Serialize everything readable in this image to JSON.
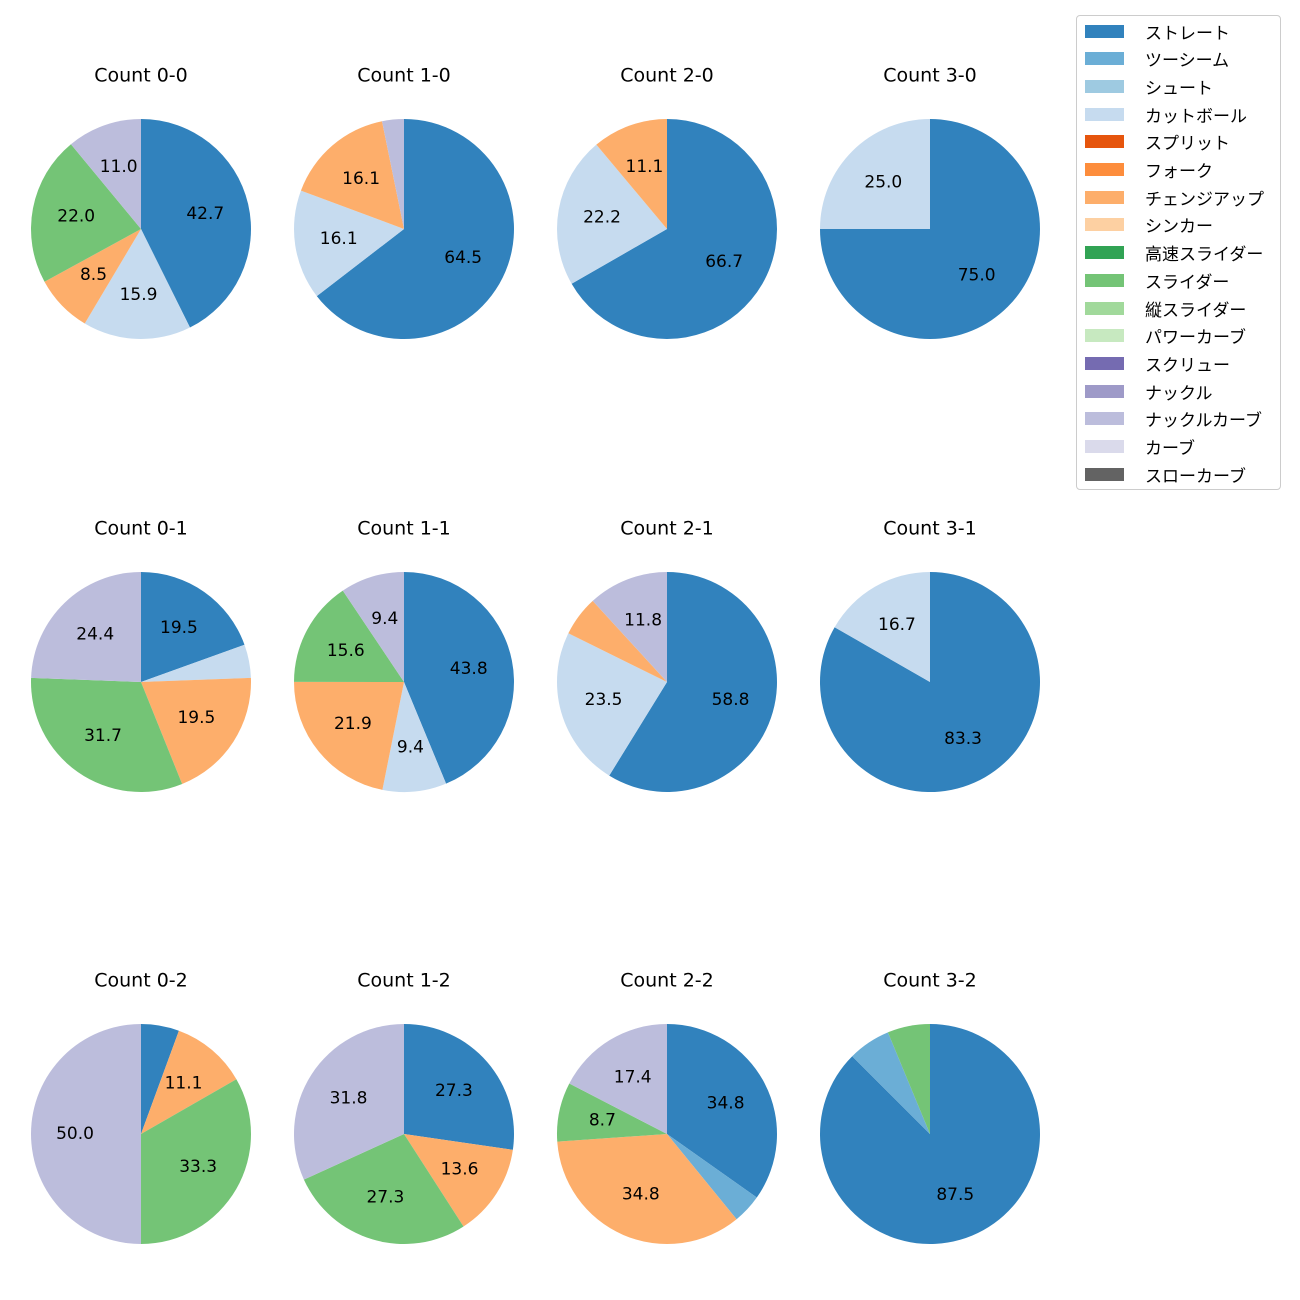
{
  "chart_data": {
    "type": "pie",
    "legend_position": "top-right",
    "legend": [
      {
        "name": "ストレート",
        "color": "#3182bd"
      },
      {
        "name": "ツーシーム",
        "color": "#6baed6"
      },
      {
        "name": "シュート",
        "color": "#9ecae1"
      },
      {
        "name": "カットボール",
        "color": "#c6dbef"
      },
      {
        "name": "スプリット",
        "color": "#e6550d"
      },
      {
        "name": "フォーク",
        "color": "#fd8d3c"
      },
      {
        "name": "チェンジアップ",
        "color": "#fdae6b"
      },
      {
        "name": "シンカー",
        "color": "#fdd0a2"
      },
      {
        "name": "高速スライダー",
        "color": "#31a354"
      },
      {
        "name": "スライダー",
        "color": "#74c476"
      },
      {
        "name": "縦スライダー",
        "color": "#a1d99b"
      },
      {
        "name": "パワーカーブ",
        "color": "#c7e9c0"
      },
      {
        "name": "スクリュー",
        "color": "#756bb1"
      },
      {
        "name": "ナックル",
        "color": "#9e9ac8"
      },
      {
        "name": "ナックルカーブ",
        "color": "#bcbddc"
      },
      {
        "name": "カーブ",
        "color": "#dadaeb"
      },
      {
        "name": "スローカーブ",
        "color": "#636363"
      }
    ],
    "pies": [
      {
        "title": "Count 0-0",
        "slices": [
          {
            "pitch": "ストレート",
            "value": 42.7,
            "label": "42.7"
          },
          {
            "pitch": "カットボール",
            "value": 15.9,
            "label": "15.9"
          },
          {
            "pitch": "チェンジアップ",
            "value": 8.5,
            "label": "8.5"
          },
          {
            "pitch": "スライダー",
            "value": 22.0,
            "label": "22.0"
          },
          {
            "pitch": "ナックルカーブ",
            "value": 11.0,
            "label": "11.0"
          }
        ]
      },
      {
        "title": "Count 1-0",
        "slices": [
          {
            "pitch": "ストレート",
            "value": 64.5,
            "label": "64.5"
          },
          {
            "pitch": "カットボール",
            "value": 16.1,
            "label": "16.1"
          },
          {
            "pitch": "チェンジアップ",
            "value": 16.1,
            "label": "16.1"
          },
          {
            "pitch": "ナックルカーブ",
            "value": 3.2,
            "label": ""
          }
        ]
      },
      {
        "title": "Count 2-0",
        "slices": [
          {
            "pitch": "ストレート",
            "value": 66.7,
            "label": "66.7"
          },
          {
            "pitch": "カットボール",
            "value": 22.2,
            "label": "22.2"
          },
          {
            "pitch": "チェンジアップ",
            "value": 11.1,
            "label": "11.1"
          }
        ]
      },
      {
        "title": "Count 3-0",
        "slices": [
          {
            "pitch": "ストレート",
            "value": 75.0,
            "label": "75.0"
          },
          {
            "pitch": "カットボール",
            "value": 25.0,
            "label": "25.0"
          }
        ]
      },
      {
        "title": "Count 0-1",
        "slices": [
          {
            "pitch": "ストレート",
            "value": 19.5,
            "label": "19.5"
          },
          {
            "pitch": "カットボール",
            "value": 4.9,
            "label": ""
          },
          {
            "pitch": "チェンジアップ",
            "value": 19.5,
            "label": "19.5"
          },
          {
            "pitch": "スライダー",
            "value": 31.7,
            "label": "31.7"
          },
          {
            "pitch": "ナックルカーブ",
            "value": 24.4,
            "label": "24.4"
          }
        ]
      },
      {
        "title": "Count 1-1",
        "slices": [
          {
            "pitch": "ストレート",
            "value": 43.8,
            "label": "43.8"
          },
          {
            "pitch": "カットボール",
            "value": 9.4,
            "label": "9.4"
          },
          {
            "pitch": "チェンジアップ",
            "value": 21.9,
            "label": "21.9"
          },
          {
            "pitch": "スライダー",
            "value": 15.6,
            "label": "15.6"
          },
          {
            "pitch": "ナックルカーブ",
            "value": 9.4,
            "label": "9.4"
          }
        ]
      },
      {
        "title": "Count 2-1",
        "slices": [
          {
            "pitch": "ストレート",
            "value": 58.8,
            "label": "58.8"
          },
          {
            "pitch": "カットボール",
            "value": 23.5,
            "label": "23.5"
          },
          {
            "pitch": "チェンジアップ",
            "value": 5.9,
            "label": ""
          },
          {
            "pitch": "ナックルカーブ",
            "value": 11.8,
            "label": "11.8"
          }
        ]
      },
      {
        "title": "Count 3-1",
        "slices": [
          {
            "pitch": "ストレート",
            "value": 83.3,
            "label": "83.3"
          },
          {
            "pitch": "カットボール",
            "value": 16.7,
            "label": "16.7"
          }
        ]
      },
      {
        "title": "Count 0-2",
        "slices": [
          {
            "pitch": "ストレート",
            "value": 5.6,
            "label": ""
          },
          {
            "pitch": "チェンジアップ",
            "value": 11.1,
            "label": "11.1"
          },
          {
            "pitch": "スライダー",
            "value": 33.3,
            "label": "33.3"
          },
          {
            "pitch": "ナックルカーブ",
            "value": 50.0,
            "label": "50.0"
          }
        ]
      },
      {
        "title": "Count 1-2",
        "slices": [
          {
            "pitch": "ストレート",
            "value": 27.3,
            "label": "27.3"
          },
          {
            "pitch": "チェンジアップ",
            "value": 13.6,
            "label": "13.6"
          },
          {
            "pitch": "スライダー",
            "value": 27.3,
            "label": "27.3"
          },
          {
            "pitch": "ナックルカーブ",
            "value": 31.8,
            "label": "31.8"
          }
        ]
      },
      {
        "title": "Count 2-2",
        "slices": [
          {
            "pitch": "ストレート",
            "value": 34.8,
            "label": "34.8"
          },
          {
            "pitch": "ツーシーム",
            "value": 4.3,
            "label": ""
          },
          {
            "pitch": "チェンジアップ",
            "value": 34.8,
            "label": "34.8"
          },
          {
            "pitch": "スライダー",
            "value": 8.7,
            "label": "8.7"
          },
          {
            "pitch": "ナックルカーブ",
            "value": 17.4,
            "label": "17.4"
          }
        ]
      },
      {
        "title": "Count 3-2",
        "slices": [
          {
            "pitch": "ストレート",
            "value": 87.5,
            "label": "87.5"
          },
          {
            "pitch": "ツーシーム",
            "value": 6.25,
            "label": ""
          },
          {
            "pitch": "スライダー",
            "value": 6.25,
            "label": ""
          }
        ]
      }
    ]
  }
}
